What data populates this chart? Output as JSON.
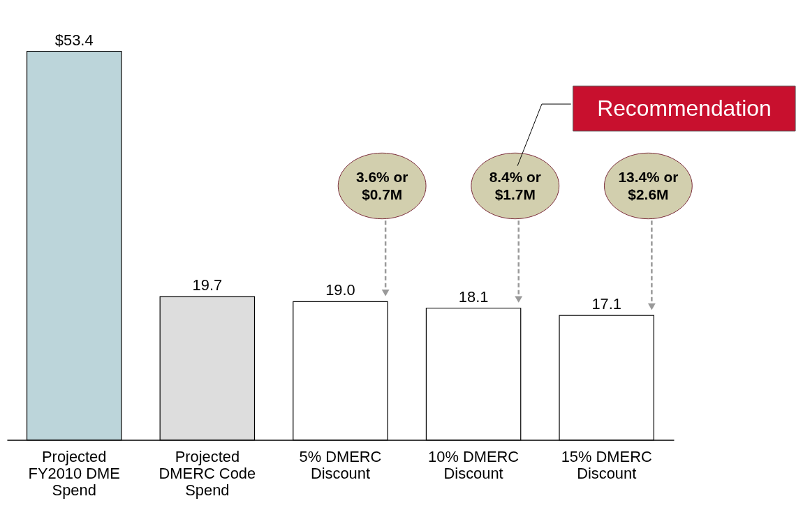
{
  "chart_data": {
    "type": "bar",
    "categories": [
      "Projected FY2010 DME Spend",
      "Projected DMERC Code Spend",
      "5% DMERC Discount",
      "10% DMERC Discount",
      "15% DMERC Discount"
    ],
    "values": [
      53.4,
      19.7,
      19.0,
      18.1,
      17.1
    ],
    "colors": [
      "#bcd5da",
      "#dddddd",
      "#ffffff",
      "#ffffff",
      "#ffffff"
    ],
    "value_labels": [
      "$53.4",
      "19.7",
      "19.0",
      "18.1",
      "17.1"
    ],
    "annotations": [
      "3.6% or $0.7M",
      "8.4% or $1.7M",
      "13.4% or $2.6M",
      "Recommendation"
    ],
    "grid": false
  }
}
